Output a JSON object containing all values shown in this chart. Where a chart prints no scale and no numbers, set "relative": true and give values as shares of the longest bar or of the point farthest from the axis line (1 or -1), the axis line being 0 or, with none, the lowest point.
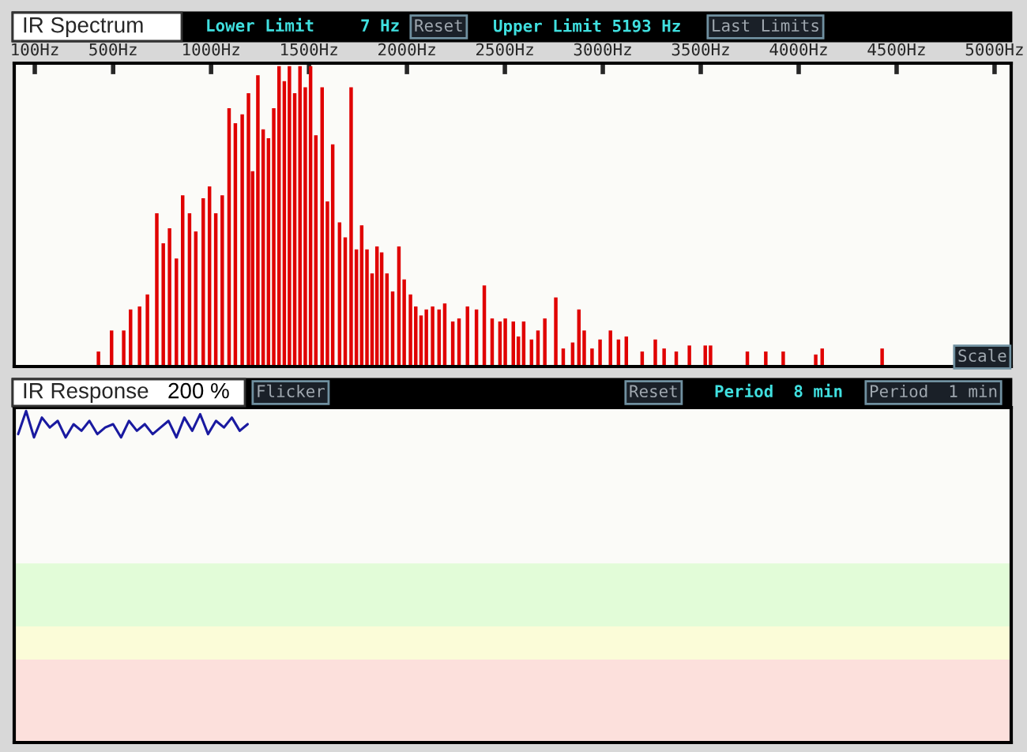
{
  "chart_data": [
    {
      "type": "bar",
      "title": "IR Spectrum",
      "annotations": [
        "Lower Limit",
        "7 Hz",
        "Reset",
        "Upper Limit 5193 Hz",
        "Last Limits",
        "Scale"
      ],
      "x": [
        425,
        492,
        554,
        589,
        635,
        675,
        723,
        756,
        788,
        823,
        855,
        890,
        922,
        960,
        992,
        1024,
        1057,
        1092,
        1124,
        1159,
        1191,
        1212,
        1239,
        1266,
        1293,
        1320,
        1347,
        1374,
        1400,
        1427,
        1454,
        1481,
        1508,
        1535,
        1567,
        1594,
        1621,
        1656,
        1685,
        1715,
        1742,
        1769,
        1796,
        1822,
        1847,
        1871,
        1898,
        1927,
        1959,
        1986,
        2018,
        2045,
        2072,
        2099,
        2131,
        2164,
        2193,
        2234,
        2266,
        2309,
        2355,
        2395,
        2435,
        2475,
        2502,
        2543,
        2569,
        2596,
        2636,
        2669,
        2704,
        2760,
        2798,
        2846,
        2878,
        2905,
        2945,
        2986,
        3039,
        3080,
        3120,
        3201,
        3268,
        3313,
        3375,
        3442,
        3523,
        3550,
        3738,
        3832,
        3921,
        4087,
        4120,
        4426
      ],
      "values": [
        0.05,
        0.12,
        0.12,
        0.19,
        0.2,
        0.24,
        0.51,
        0.41,
        0.46,
        0.36,
        0.57,
        0.51,
        0.45,
        0.56,
        0.6,
        0.51,
        0.57,
        0.86,
        0.81,
        0.84,
        0.91,
        0.65,
        0.97,
        0.79,
        0.76,
        0.86,
        1,
        0.95,
        1,
        0.91,
        1,
        0.93,
        1,
        0.77,
        0.93,
        0.55,
        0.74,
        0.48,
        0.43,
        0.93,
        0.39,
        0.47,
        0.39,
        0.31,
        0.4,
        0.38,
        0.31,
        0.25,
        0.4,
        0.29,
        0.24,
        0.2,
        0.17,
        0.19,
        0.2,
        0.19,
        0.21,
        0.15,
        0.16,
        0.2,
        0.19,
        0.27,
        0.16,
        0.15,
        0.16,
        0.15,
        0.1,
        0.15,
        0.09,
        0.12,
        0.16,
        0.23,
        0.06,
        0.08,
        0.19,
        0.12,
        0.06,
        0.09,
        0.12,
        0.09,
        0.1,
        0.05,
        0.09,
        0.06,
        0.05,
        0.07,
        0.07,
        0.07,
        0.05,
        0.05,
        0.05,
        0.04,
        0.06,
        0.06
      ],
      "color": "#e00000",
      "relative": true,
      "xlim": [
        -5,
        5085
      ],
      "xticks": [
        {
          "value": 100,
          "label": "100Hz"
        },
        {
          "value": 500,
          "label": "500Hz"
        },
        {
          "value": 1000,
          "label": "1000Hz"
        },
        {
          "value": 1500,
          "label": "1500Hz"
        },
        {
          "value": 2000,
          "label": "2000Hz"
        },
        {
          "value": 2500,
          "label": "2500Hz"
        },
        {
          "value": 3000,
          "label": "3000Hz"
        },
        {
          "value": 3500,
          "label": "3500Hz"
        },
        {
          "value": 4000,
          "label": "4000Hz"
        },
        {
          "value": 4500,
          "label": "4500Hz"
        },
        {
          "value": 5000,
          "label": "5000Hz"
        }
      ],
      "tick_labels": "x"
    },
    {
      "type": "line",
      "title": "IR Response",
      "annotations": [
        "200 %",
        "Flicker",
        "Reset",
        "Period  8 min",
        "Period  1 min"
      ],
      "categories": [
        null,
        null,
        null,
        null,
        null,
        null,
        null,
        null,
        null,
        null,
        null,
        null,
        null,
        null,
        null,
        null,
        null,
        null,
        null,
        null,
        null,
        null,
        null,
        null,
        null,
        null,
        null,
        null,
        null,
        null,
        null,
        null,
        null,
        null,
        null,
        null,
        null,
        null,
        null,
        null,
        null,
        null,
        null,
        null,
        null,
        null,
        null,
        null,
        null,
        null,
        null,
        null,
        null,
        null,
        null,
        null,
        null,
        null,
        null,
        null,
        null,
        null,
        null,
        null,
        null,
        null,
        null,
        null,
        null,
        null,
        null,
        null,
        null,
        null,
        null,
        null,
        null,
        null,
        null,
        null,
        null,
        null,
        null,
        null,
        null,
        null,
        null,
        null,
        null,
        null,
        null,
        null,
        null,
        null,
        null,
        null,
        null,
        null,
        null,
        null,
        null,
        null,
        null,
        null,
        null,
        null,
        null,
        null,
        null,
        null,
        null,
        null,
        null,
        null,
        null,
        null,
        null,
        null,
        null,
        null,
        null,
        null,
        null,
        null,
        null,
        null
      ],
      "series": [
        {
          "color": "#1a1aa0",
          "values": [
            0.93,
            1,
            0.92,
            0.98,
            0.95,
            0.97,
            0.92,
            0.96,
            0.94,
            0.97,
            0.93,
            0.95,
            0.96,
            0.92,
            0.97,
            0.94,
            0.96,
            0.93,
            0.95,
            0.97,
            0.92,
            0.98,
            0.94,
            0.99,
            0.93,
            0.97,
            0.95,
            0.98,
            0.94,
            0.96,
            null,
            null,
            null,
            null,
            null,
            null,
            null,
            null,
            null,
            null,
            null,
            null,
            null,
            null,
            null,
            null,
            null,
            null,
            null,
            null,
            null,
            null,
            null,
            null,
            null,
            null,
            null,
            null,
            null,
            null,
            null,
            null,
            null,
            null,
            null,
            null,
            null,
            null,
            null,
            null,
            null,
            null,
            null,
            null,
            null,
            null,
            null,
            null,
            null,
            null,
            null,
            null,
            null,
            null,
            null,
            null,
            null,
            null,
            null,
            null,
            null,
            null,
            null,
            null,
            null,
            null,
            null,
            null,
            null,
            null,
            null,
            null,
            null,
            null,
            null,
            null,
            null,
            null,
            null,
            null,
            null,
            null,
            null,
            null,
            null,
            null,
            null,
            null,
            null,
            null,
            null,
            null,
            null,
            null,
            null,
            null
          ]
        }
      ],
      "relative": true,
      "tick_labels": false,
      "bands": [
        {
          "axis": "y",
          "from": 0.35,
          "to": 0.54,
          "color": "#e2fcd8"
        },
        {
          "axis": "y",
          "from": 0.25,
          "to": 0.35,
          "color": "#fbfcd8"
        },
        {
          "axis": "y",
          "from": 0,
          "to": 0.25,
          "color": "#fce0dc"
        }
      ]
    }
  ]
}
